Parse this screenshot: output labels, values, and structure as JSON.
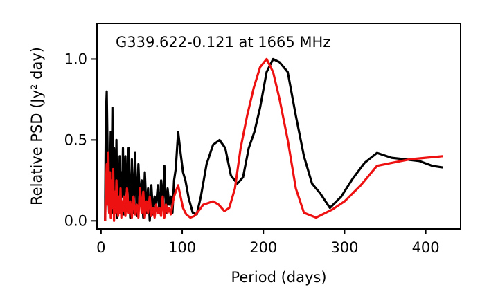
{
  "chart_data": {
    "type": "line",
    "title": "G339.622-0.121 at 1665 MHz",
    "xlabel": "Period (days)",
    "ylabel": "Relative PSD (Jy² day)",
    "xlim": [
      -5,
      443
    ],
    "ylim": [
      -0.05,
      1.22
    ],
    "xticks": [
      0,
      100,
      200,
      300,
      400
    ],
    "yticks": [
      0.0,
      0.5,
      1.0
    ],
    "xtick_labels": [
      "0",
      "100",
      "200",
      "300",
      "400"
    ],
    "ytick_labels": [
      "0.0",
      "0.5",
      "1.0"
    ],
    "grid": false,
    "series": [
      {
        "color": "#000000",
        "x": [
          5,
          6,
          7,
          8,
          9,
          10,
          11,
          12,
          13,
          14,
          15,
          16,
          17,
          18,
          19,
          20,
          21,
          22,
          23,
          24,
          25,
          26,
          27,
          28,
          30,
          32,
          34,
          36,
          38,
          40,
          42,
          44,
          46,
          48,
          50,
          52,
          54,
          56,
          58,
          60,
          62,
          64,
          66,
          68,
          70,
          72,
          74,
          76,
          78,
          80,
          82,
          84,
          86,
          88,
          90,
          92,
          95,
          98,
          101,
          104,
          108,
          113,
          118,
          123,
          130,
          138,
          146,
          153,
          160,
          168,
          175,
          182,
          189,
          196,
          204,
          212,
          220,
          230,
          240,
          250,
          260,
          270,
          282,
          296,
          310,
          325,
          340,
          358,
          375,
          392,
          408,
          421
        ],
        "y": [
          0.0,
          0.65,
          0.8,
          0.45,
          0.2,
          0.05,
          0.25,
          0.55,
          0.15,
          0.7,
          0.05,
          0.45,
          0.3,
          0.1,
          0.5,
          0.02,
          0.33,
          0.12,
          0.4,
          0.05,
          0.3,
          0.15,
          0.45,
          0.04,
          0.4,
          0.1,
          0.45,
          0.02,
          0.38,
          0.05,
          0.42,
          0.03,
          0.35,
          0.1,
          0.25,
          0.02,
          0.3,
          0.05,
          0.2,
          0.0,
          0.22,
          0.04,
          0.15,
          0.1,
          0.22,
          0.05,
          0.25,
          0.08,
          0.34,
          0.05,
          0.2,
          0.1,
          0.15,
          0.05,
          0.25,
          0.32,
          0.55,
          0.42,
          0.3,
          0.25,
          0.14,
          0.05,
          0.04,
          0.15,
          0.35,
          0.47,
          0.5,
          0.45,
          0.28,
          0.23,
          0.27,
          0.45,
          0.55,
          0.7,
          0.92,
          1.0,
          0.98,
          0.92,
          0.65,
          0.4,
          0.23,
          0.17,
          0.08,
          0.15,
          0.26,
          0.36,
          0.42,
          0.39,
          0.38,
          0.37,
          0.34,
          0.33
        ]
      },
      {
        "color": "#ee1111",
        "x": [
          5,
          6,
          7,
          8,
          9,
          10,
          11,
          12,
          13,
          14,
          15,
          16,
          17,
          18,
          19,
          20,
          21,
          22,
          23,
          24,
          25,
          26,
          27,
          28,
          30,
          32,
          34,
          36,
          38,
          40,
          42,
          44,
          46,
          48,
          50,
          52,
          54,
          56,
          58,
          60,
          62,
          64,
          66,
          68,
          70,
          72,
          74,
          76,
          78,
          80,
          82,
          84,
          86,
          88,
          90,
          92,
          95,
          98,
          101,
          105,
          110,
          115,
          120,
          126,
          132,
          138,
          145,
          152,
          158,
          165,
          172,
          180,
          188,
          196,
          204,
          212,
          220,
          230,
          240,
          250,
          265,
          285,
          300,
          320,
          340,
          360,
          380,
          400,
          421
        ],
        "y": [
          0.0,
          0.2,
          0.35,
          0.1,
          0.42,
          0.05,
          0.3,
          0.02,
          0.25,
          0.08,
          0.32,
          0.0,
          0.18,
          0.05,
          0.25,
          0.1,
          0.03,
          0.15,
          0.05,
          0.2,
          0.02,
          0.12,
          0.06,
          0.15,
          0.03,
          0.2,
          0.05,
          0.12,
          0.02,
          0.15,
          0.04,
          0.1,
          0.02,
          0.2,
          0.05,
          0.18,
          0.02,
          0.12,
          0.05,
          0.15,
          0.03,
          0.08,
          0.02,
          0.1,
          0.05,
          0.08,
          0.03,
          0.15,
          0.02,
          0.1,
          0.05,
          0.08,
          0.04,
          0.1,
          0.15,
          0.18,
          0.22,
          0.15,
          0.08,
          0.04,
          0.02,
          0.03,
          0.06,
          0.1,
          0.11,
          0.12,
          0.1,
          0.06,
          0.08,
          0.2,
          0.45,
          0.65,
          0.82,
          0.95,
          1.0,
          0.92,
          0.75,
          0.5,
          0.2,
          0.05,
          0.02,
          0.07,
          0.12,
          0.22,
          0.34,
          0.36,
          0.38,
          0.39,
          0.4
        ]
      }
    ]
  }
}
